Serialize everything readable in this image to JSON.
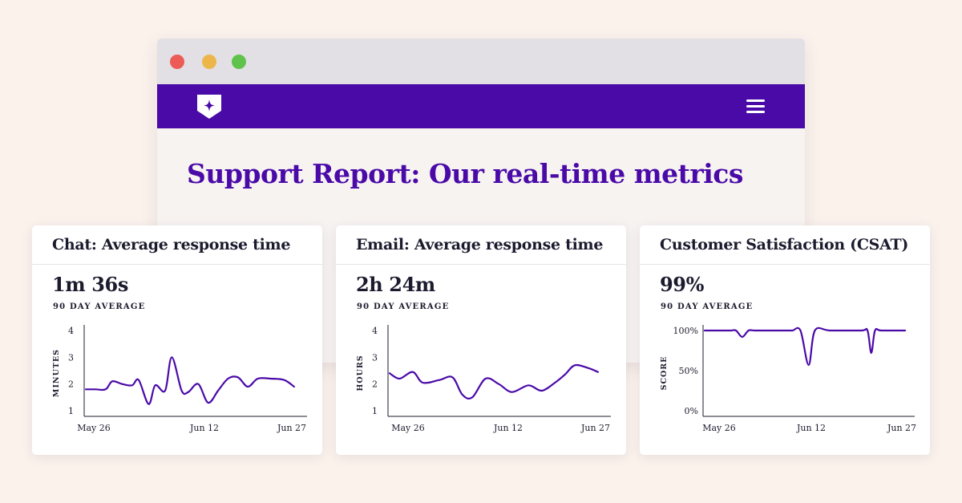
{
  "page": {
    "title": "Support Report: Our real-time metrics"
  },
  "colors": {
    "brand": "#4a0aa8",
    "line": "#4a0aa8",
    "text": "#1c1b2e"
  },
  "icons": {
    "logo": "shield-star-logo",
    "menu": "hamburger-menu-icon"
  },
  "cards": [
    {
      "title": "Chat: Average response time",
      "metric": "1m 36s",
      "subtitle": "90 DAY AVERAGE"
    },
    {
      "title": "Email: Average response time",
      "metric": "2h 24m",
      "subtitle": "90 DAY AVERAGE"
    },
    {
      "title": "Customer Satisfaction (CSAT)",
      "metric": "99%",
      "subtitle": "90 DAY AVERAGE"
    }
  ],
  "chart_data": [
    {
      "type": "line",
      "ylabel": "MINUTES",
      "ylim": [
        1,
        4
      ],
      "yticks": [
        "1",
        "2",
        "3",
        "4"
      ],
      "xticks": [
        "May 26",
        "Jun 12",
        "Jun 27"
      ],
      "xlim": [
        0,
        32
      ],
      "x": [
        0,
        1.5,
        3,
        4,
        5.5,
        7,
        8,
        9.5,
        10.5,
        12,
        13,
        14.5,
        15.5,
        17,
        18.5,
        20,
        21.5,
        23,
        24.5,
        26,
        28,
        30,
        31.5
      ],
      "values": [
        1.8,
        1.8,
        1.8,
        2.1,
        2.0,
        1.95,
        2.15,
        1.25,
        1.95,
        1.75,
        3.0,
        1.75,
        1.7,
        2.0,
        1.3,
        1.75,
        2.2,
        2.25,
        1.9,
        2.2,
        2.2,
        2.15,
        1.9
      ]
    },
    {
      "type": "line",
      "ylabel": "HOURS",
      "ylim": [
        1,
        4
      ],
      "yticks": [
        "1",
        "2",
        "3",
        "4"
      ],
      "xticks": [
        "May 26",
        "Jun 12",
        "Jun 27"
      ],
      "xlim": [
        0,
        32
      ],
      "x": [
        0,
        1.5,
        3.5,
        5,
        7.5,
        9.5,
        11,
        12.5,
        14.5,
        16.5,
        18.5,
        21,
        23,
        25,
        26.5,
        28,
        30,
        31.5
      ],
      "values": [
        2.4,
        2.2,
        2.45,
        2.05,
        2.15,
        2.25,
        1.6,
        1.5,
        2.2,
        2.0,
        1.7,
        1.95,
        1.75,
        2.05,
        2.35,
        2.7,
        2.6,
        2.45
      ]
    },
    {
      "type": "line",
      "ylabel": "SCORE",
      "ylim": [
        0,
        100
      ],
      "yticks": [
        "0%",
        "50%",
        "100%"
      ],
      "xticks": [
        "May 26",
        "Jun 12",
        "Jun 27"
      ],
      "xlim": [
        0,
        32
      ],
      "x": [
        0,
        3,
        4.2,
        5,
        6,
        7,
        8,
        10,
        13,
        14,
        15.3,
        16.6,
        17.6,
        20,
        25,
        26,
        26.6,
        27.2,
        28.2,
        32
      ],
      "values": [
        100,
        100,
        100,
        100,
        92,
        100,
        100,
        100,
        100,
        100,
        100,
        57,
        100,
        100,
        100,
        100,
        72,
        100,
        100,
        100
      ]
    }
  ]
}
